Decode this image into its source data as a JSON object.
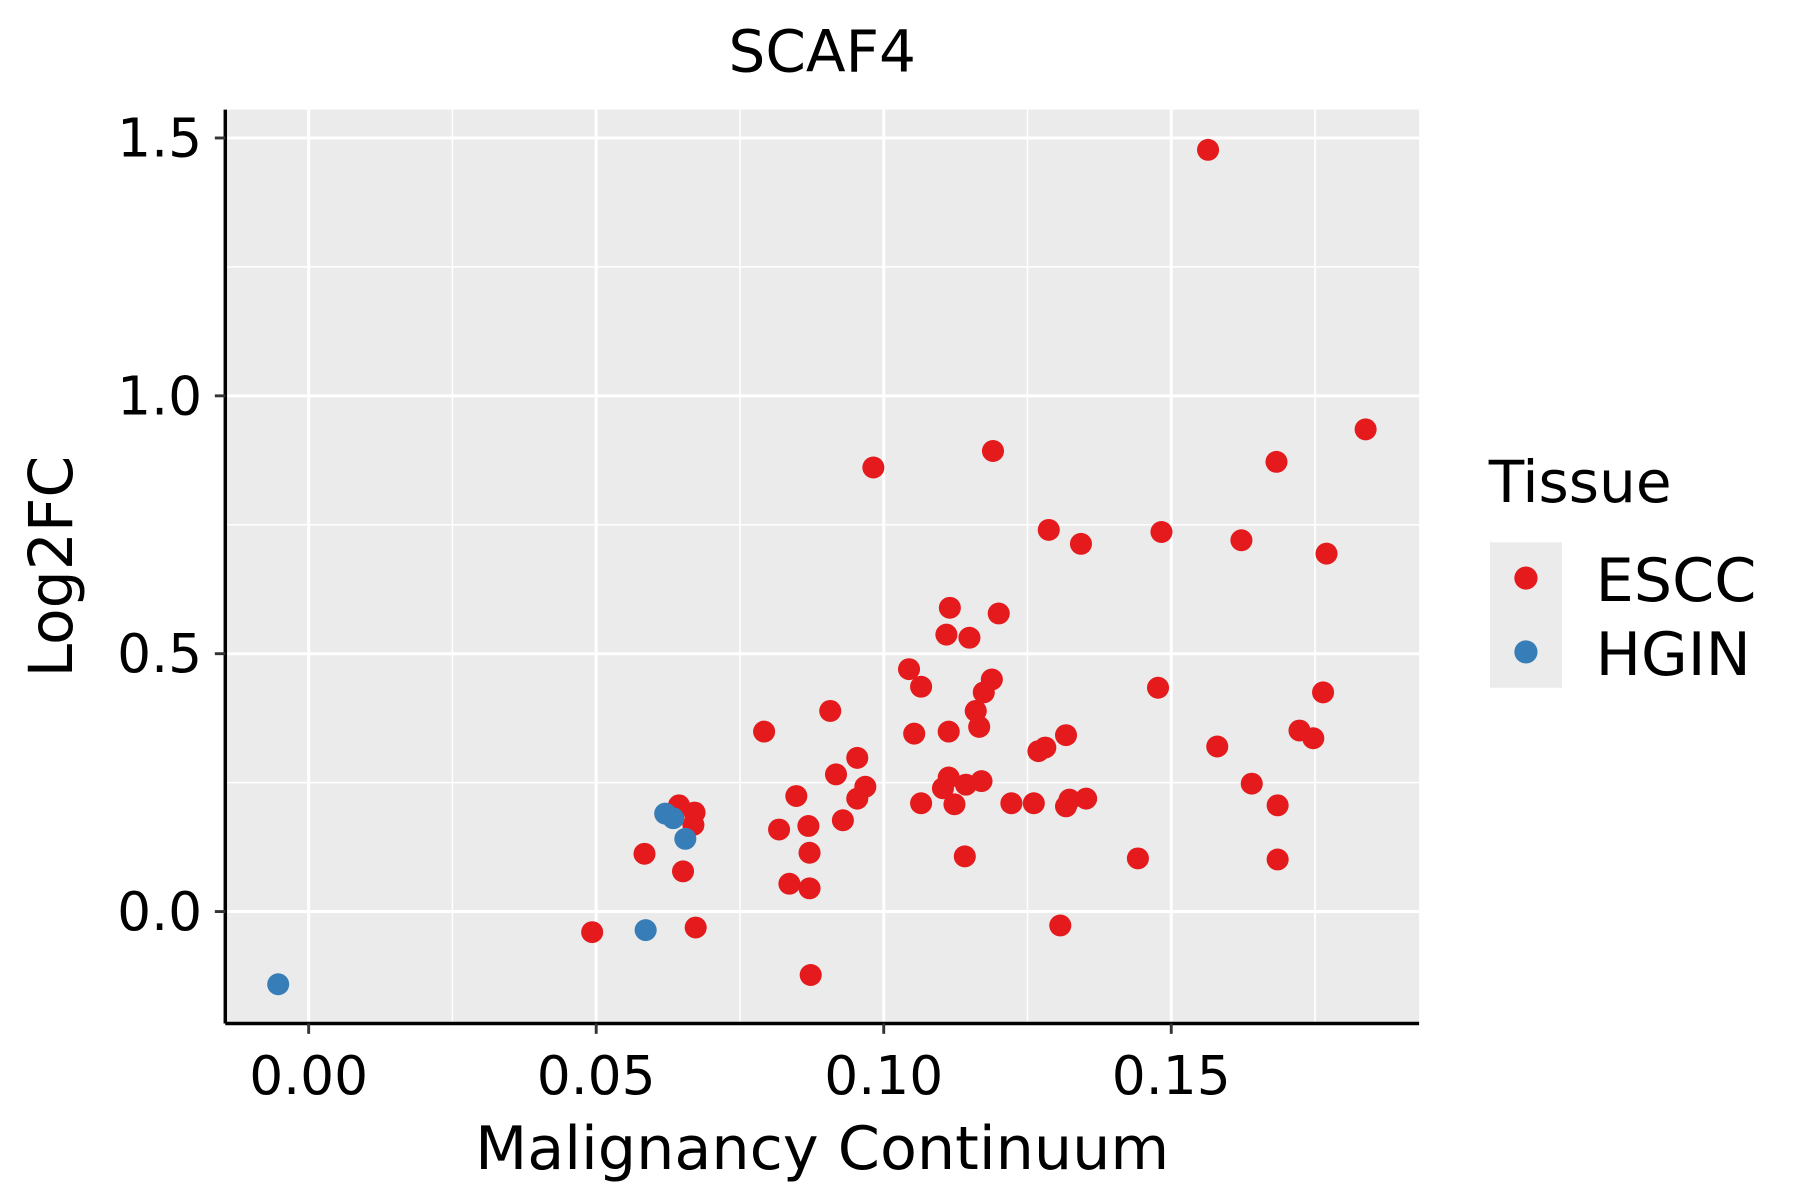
{
  "chart_data": {
    "type": "scatter",
    "title": "SCAF4",
    "xlabel": "Malignancy Continuum",
    "ylabel": "Log2FC",
    "xlim": [
      -0.0145,
      0.1931
    ],
    "ylim": [
      -0.217,
      1.555
    ],
    "xticks": [
      0.0,
      0.05,
      0.1,
      0.15
    ],
    "xtick_labels": [
      "0.00",
      "0.05",
      "0.10",
      "0.15"
    ],
    "yticks": [
      0.0,
      0.5,
      1.0,
      1.5
    ],
    "ytick_labels": [
      "0.0",
      "0.5",
      "1.0",
      "1.5"
    ],
    "grid": true,
    "legend": {
      "title": "Tissue",
      "placement": "right"
    },
    "series": [
      {
        "name": "ESCC",
        "color": "#e41a1c",
        "points": [
          [
            0.1564,
            1.477
          ],
          [
            0.1838,
            0.935
          ],
          [
            0.119,
            0.893
          ],
          [
            0.1683,
            0.872
          ],
          [
            0.0982,
            0.861
          ],
          [
            0.1287,
            0.74
          ],
          [
            0.1483,
            0.736
          ],
          [
            0.1343,
            0.713
          ],
          [
            0.1622,
            0.72
          ],
          [
            0.177,
            0.694
          ],
          [
            0.1115,
            0.589
          ],
          [
            0.12,
            0.578
          ],
          [
            0.1109,
            0.537
          ],
          [
            0.1149,
            0.531
          ],
          [
            0.1044,
            0.47
          ],
          [
            0.1188,
            0.45
          ],
          [
            0.1065,
            0.436
          ],
          [
            0.1477,
            0.434
          ],
          [
            0.1764,
            0.425
          ],
          [
            0.1174,
            0.425
          ],
          [
            0.116,
            0.389
          ],
          [
            0.0907,
            0.389
          ],
          [
            0.1166,
            0.358
          ],
          [
            0.0792,
            0.349
          ],
          [
            0.1053,
            0.345
          ],
          [
            0.1113,
            0.349
          ],
          [
            0.1723,
            0.351
          ],
          [
            0.1747,
            0.336
          ],
          [
            0.1317,
            0.342
          ],
          [
            0.1281,
            0.318
          ],
          [
            0.1269,
            0.311
          ],
          [
            0.158,
            0.32
          ],
          [
            0.0954,
            0.298
          ],
          [
            0.0917,
            0.266
          ],
          [
            0.1113,
            0.26
          ],
          [
            0.164,
            0.248
          ],
          [
            0.0968,
            0.242
          ],
          [
            0.1103,
            0.239
          ],
          [
            0.1143,
            0.246
          ],
          [
            0.117,
            0.253
          ],
          [
            0.0848,
            0.224
          ],
          [
            0.0954,
            0.219
          ],
          [
            0.1065,
            0.21
          ],
          [
            0.1123,
            0.208
          ],
          [
            0.1222,
            0.21
          ],
          [
            0.1261,
            0.21
          ],
          [
            0.1323,
            0.217
          ],
          [
            0.1352,
            0.219
          ],
          [
            0.1317,
            0.204
          ],
          [
            0.1685,
            0.206
          ],
          [
            0.0644,
            0.206
          ],
          [
            0.0671,
            0.192
          ],
          [
            0.0669,
            0.168
          ],
          [
            0.0929,
            0.177
          ],
          [
            0.0818,
            0.159
          ],
          [
            0.0869,
            0.166
          ],
          [
            0.0584,
            0.112
          ],
          [
            0.0871,
            0.114
          ],
          [
            0.0651,
            0.078
          ],
          [
            0.1141,
            0.107
          ],
          [
            0.1442,
            0.103
          ],
          [
            0.1685,
            0.101
          ],
          [
            0.0836,
            0.054
          ],
          [
            0.0871,
            0.045
          ],
          [
            0.0493,
            -0.04
          ],
          [
            0.0673,
            -0.031
          ],
          [
            0.1307,
            -0.027
          ],
          [
            0.0873,
            -0.123
          ]
        ]
      },
      {
        "name": "HGIN",
        "color": "#377eb8",
        "points": [
          [
            -0.0053,
            -0.141
          ],
          [
            0.0586,
            -0.036
          ],
          [
            0.062,
            0.19
          ],
          [
            0.0634,
            0.181
          ],
          [
            0.0655,
            0.141
          ]
        ]
      }
    ]
  }
}
